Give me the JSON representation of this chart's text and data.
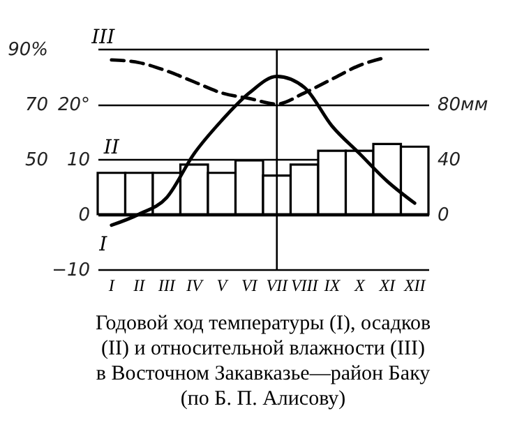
{
  "chart_data": {
    "type": "line",
    "categories": [
      "I",
      "II",
      "III",
      "IV",
      "V",
      "VI",
      "VII",
      "VIII",
      "IX",
      "X",
      "XI",
      "XII"
    ],
    "series": [
      {
        "name": "II",
        "type": "bar",
        "axis": "y3",
        "color": "#000000",
        "values": [
          30,
          30,
          30,
          36,
          30,
          39,
          28,
          36,
          46,
          46,
          51,
          49
        ]
      },
      {
        "name": "I",
        "color": "#000000",
        "values": [
          -2,
          0,
          3,
          11,
          17,
          22,
          25,
          23,
          16,
          11,
          6,
          2
        ]
      },
      {
        "name": "III",
        "type": "line",
        "axis": "y2",
        "color": "#000000",
        "line_style": "dashed",
        "values": [
          86,
          85,
          82,
          78,
          74,
          72,
          70,
          74,
          79,
          84,
          87,
          null
        ]
      }
    ],
    "ylim": [
      -10,
      30
    ],
    "yticks": [
      -10,
      0,
      10,
      {
        "value": 20,
        "label": "20°"
      },
      {
        "value": 30,
        "label": null
      }
    ],
    "y2lim": [
      10,
      90
    ],
    "y2ticks": [
      50,
      70,
      {
        "value": 90,
        "label": "90%"
      }
    ],
    "y3lim": [
      -40,
      120
    ],
    "y3ticks": [
      0,
      40,
      {
        "value": 80,
        "label": "80мм"
      }
    ],
    "grid": "y",
    "ref_lines": [
      {
        "axis": "x",
        "value": "VII"
      }
    ],
    "annotations": [
      "Годовой ход температуры (I), осадков (II) и относительной влажности (III) в Восточном Закавказье—район Баку (по Б. П. Алисову)"
    ]
  }
}
